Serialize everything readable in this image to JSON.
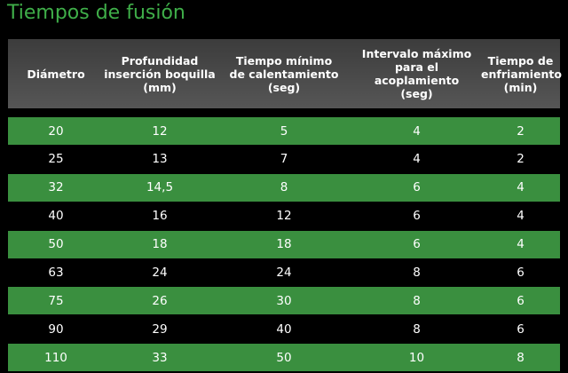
{
  "title": "Tiempos de fusión",
  "colors": {
    "title": "#3fae49",
    "green_row": "#3a8f3f",
    "header_bg": "#4a4a4a",
    "background": "#000000"
  },
  "headers": [
    "Diámetro",
    "Profundidad\ninserción boquilla\n(mm)",
    "Tiempo mínimo\nde calentamiento\n(seg)",
    "Intervalo máximo\npara el acoplamiento\n(seg)",
    "Tiempo de\nenfriamiento\n(min)"
  ],
  "rows": [
    [
      "20",
      "12",
      "5",
      "4",
      "2"
    ],
    [
      "25",
      "13",
      "7",
      "4",
      "2"
    ],
    [
      "32",
      "14,5",
      "8",
      "6",
      "4"
    ],
    [
      "40",
      "16",
      "12",
      "6",
      "4"
    ],
    [
      "50",
      "18",
      "18",
      "6",
      "4"
    ],
    [
      "63",
      "24",
      "24",
      "8",
      "6"
    ],
    [
      "75",
      "26",
      "30",
      "8",
      "6"
    ],
    [
      "90",
      "29",
      "40",
      "8",
      "6"
    ],
    [
      "110",
      "33",
      "50",
      "10",
      "8"
    ]
  ]
}
